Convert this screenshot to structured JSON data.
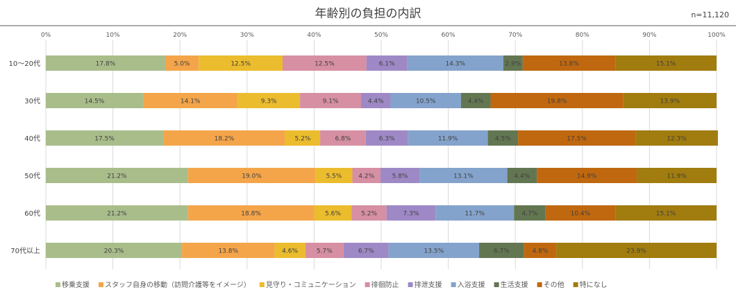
{
  "chart_data": {
    "type": "stacked-bar-horizontal-100",
    "title": "年齢別の負担の内訳",
    "note": "n=11,120",
    "x_ticks": [
      "0%",
      "10%",
      "20%",
      "30%",
      "40%",
      "50%",
      "60%",
      "70%",
      "80%",
      "90%",
      "100%"
    ],
    "xlim": [
      0,
      100
    ],
    "categories": [
      "10〜20代",
      "30代",
      "40代",
      "50代",
      "60代",
      "70代以上"
    ],
    "series": [
      {
        "name": "移乗支援",
        "color": "#a9bd8b",
        "values": [
          17.8,
          14.5,
          17.5,
          21.2,
          21.2,
          20.3
        ]
      },
      {
        "name": "スタッフ自身の移動（訪問介護等をイメージ）",
        "color": "#f4a54a",
        "values": [
          5.0,
          14.1,
          18.2,
          19.0,
          18.8,
          13.8
        ]
      },
      {
        "name": "見守り・コミュニケーション",
        "color": "#ebbc2d",
        "values": [
          12.5,
          9.3,
          5.2,
          5.5,
          5.6,
          4.6
        ]
      },
      {
        "name": "徘徊防止",
        "color": "#d68fa3",
        "values": [
          12.5,
          9.1,
          6.8,
          4.2,
          5.2,
          5.7
        ]
      },
      {
        "name": "排泄支援",
        "color": "#9e89c6",
        "values": [
          6.1,
          4.4,
          6.3,
          5.8,
          7.3,
          6.7
        ]
      },
      {
        "name": "入浴支援",
        "color": "#84a3cc",
        "values": [
          14.3,
          10.5,
          11.9,
          13.1,
          11.7,
          13.5
        ]
      },
      {
        "name": "生活支援",
        "color": "#637652",
        "values": [
          2.9,
          4.4,
          4.5,
          4.4,
          4.7,
          6.7
        ]
      },
      {
        "name": "その他",
        "color": "#c0680f",
        "values": [
          13.8,
          19.8,
          17.5,
          14.9,
          10.4,
          4.8
        ]
      },
      {
        "name": "特になし",
        "color": "#a17c0e",
        "values": [
          15.1,
          13.9,
          12.3,
          11.9,
          15.1,
          23.9
        ]
      }
    ],
    "legend": "bottom"
  }
}
